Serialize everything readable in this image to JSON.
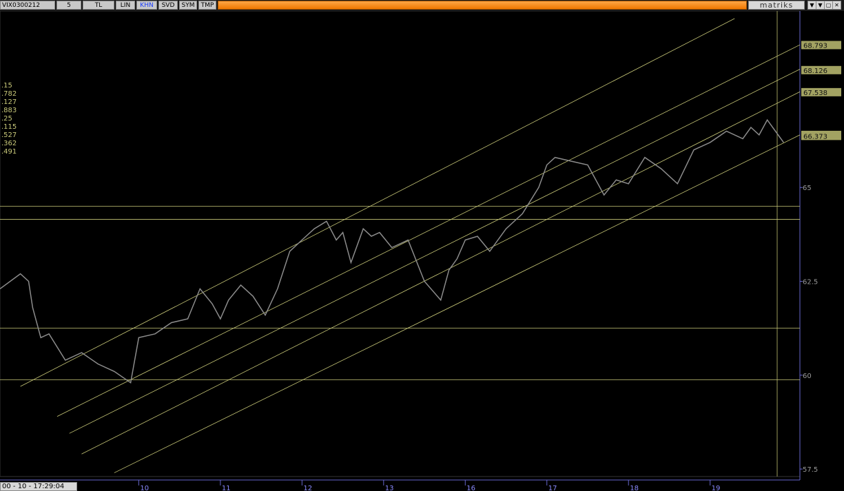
{
  "toolbar": {
    "symbol": "VIX0300212",
    "period": "5",
    "buttons": [
      "TL",
      "LIN",
      "KHN",
      "SVD",
      "SYM",
      "TMP"
    ],
    "selected": "KHN",
    "brand": "matriks",
    "window_controls": [
      "▼",
      "▼",
      "▢",
      "✕"
    ]
  },
  "status": {
    "datetime": "00 - 10 - 17:29:04"
  },
  "legend_values": [
    ".15",
    ".782",
    ".127",
    ".883",
    ".25",
    ".115",
    ".527",
    ".362",
    ".491"
  ],
  "colors": {
    "background": "#000000",
    "price_line": "#8c8c8c",
    "channel_lines": "#c8c878",
    "label_box": "#a2a262",
    "toolbar_accent": "#f07800",
    "date_text": "#8a8aff"
  },
  "chart_data": {
    "type": "line",
    "title": "",
    "xlabel": "",
    "ylabel": "",
    "ylim": [
      57.3,
      69.7
    ],
    "y_ticks": [
      57.5,
      60,
      62.5,
      65
    ],
    "y_tick_labels": [
      "57.5",
      "60",
      "62.5",
      "65"
    ],
    "x_ticks": [
      "10",
      "11",
      "12",
      "13",
      "16",
      "17",
      "18",
      "19"
    ],
    "x_tick_index": [
      0,
      1,
      2,
      3,
      4,
      5,
      6,
      7
    ],
    "xlim": [
      -1.7,
      8.1
    ],
    "grid": false,
    "legend": "none",
    "current_price": 66.373,
    "current_price_label": "66.373",
    "channel_value_labels": [
      {
        "label": "68.793",
        "value": 68.793
      },
      {
        "label": "68.126",
        "value": 68.126
      },
      {
        "label": "67.538",
        "value": 67.538
      },
      {
        "label": "66.4",
        "value": 66.4
      }
    ],
    "horizontal_levels": [
      64.5,
      64.15,
      61.25,
      59.88
    ],
    "channel_lines": [
      {
        "x": [
          -1.45,
          7.3
        ],
        "y": [
          59.7,
          69.5
        ]
      },
      {
        "x": [
          -1.0,
          8.1
        ],
        "y": [
          58.9,
          68.8
        ]
      },
      {
        "x": [
          -0.85,
          8.1
        ],
        "y": [
          58.45,
          68.15
        ]
      },
      {
        "x": [
          -0.7,
          8.1
        ],
        "y": [
          57.9,
          67.55
        ]
      },
      {
        "x": [
          -0.3,
          8.1
        ],
        "y": [
          57.4,
          66.4
        ]
      }
    ],
    "series": [
      {
        "x": [
          -1.7,
          -1.45,
          -1.35,
          -1.3,
          -1.2,
          -1.1,
          -0.9,
          -0.7,
          -0.5,
          -0.3,
          -0.1,
          0.0,
          0.2,
          0.4,
          0.6,
          0.75,
          0.9,
          1.0,
          1.1,
          1.25,
          1.4,
          1.55,
          1.7,
          1.85,
          2.0,
          2.15,
          2.3,
          2.42,
          2.5,
          2.6,
          2.75,
          2.85,
          2.95,
          3.1,
          3.3,
          3.5,
          3.7,
          3.8,
          3.9,
          4.0,
          4.15,
          4.3,
          4.5,
          4.7,
          4.9,
          5.0,
          5.1,
          5.3,
          5.5,
          5.7,
          5.85,
          6.0,
          6.2,
          6.4,
          6.6,
          6.8,
          7.0,
          7.2,
          7.4,
          7.5,
          7.6,
          7.7,
          7.8,
          7.9
        ],
        "y": [
          62.3,
          62.7,
          62.5,
          61.8,
          61.0,
          61.1,
          60.4,
          60.6,
          60.3,
          60.1,
          59.8,
          61.0,
          61.1,
          61.4,
          61.5,
          62.3,
          61.9,
          61.5,
          62.0,
          62.4,
          62.1,
          61.6,
          62.3,
          63.3,
          63.6,
          63.9,
          64.1,
          63.6,
          63.8,
          63.0,
          63.9,
          63.7,
          63.8,
          63.4,
          63.6,
          62.5,
          62.0,
          62.8,
          63.1,
          63.6,
          63.7,
          63.3,
          63.9,
          64.3,
          65.0,
          65.6,
          65.8,
          65.7,
          65.6,
          64.8,
          65.2,
          65.1,
          65.8,
          65.5,
          65.1,
          66.0,
          66.2,
          66.5,
          66.3,
          66.6,
          66.4,
          66.8,
          66.5,
          66.2
        ]
      }
    ]
  }
}
